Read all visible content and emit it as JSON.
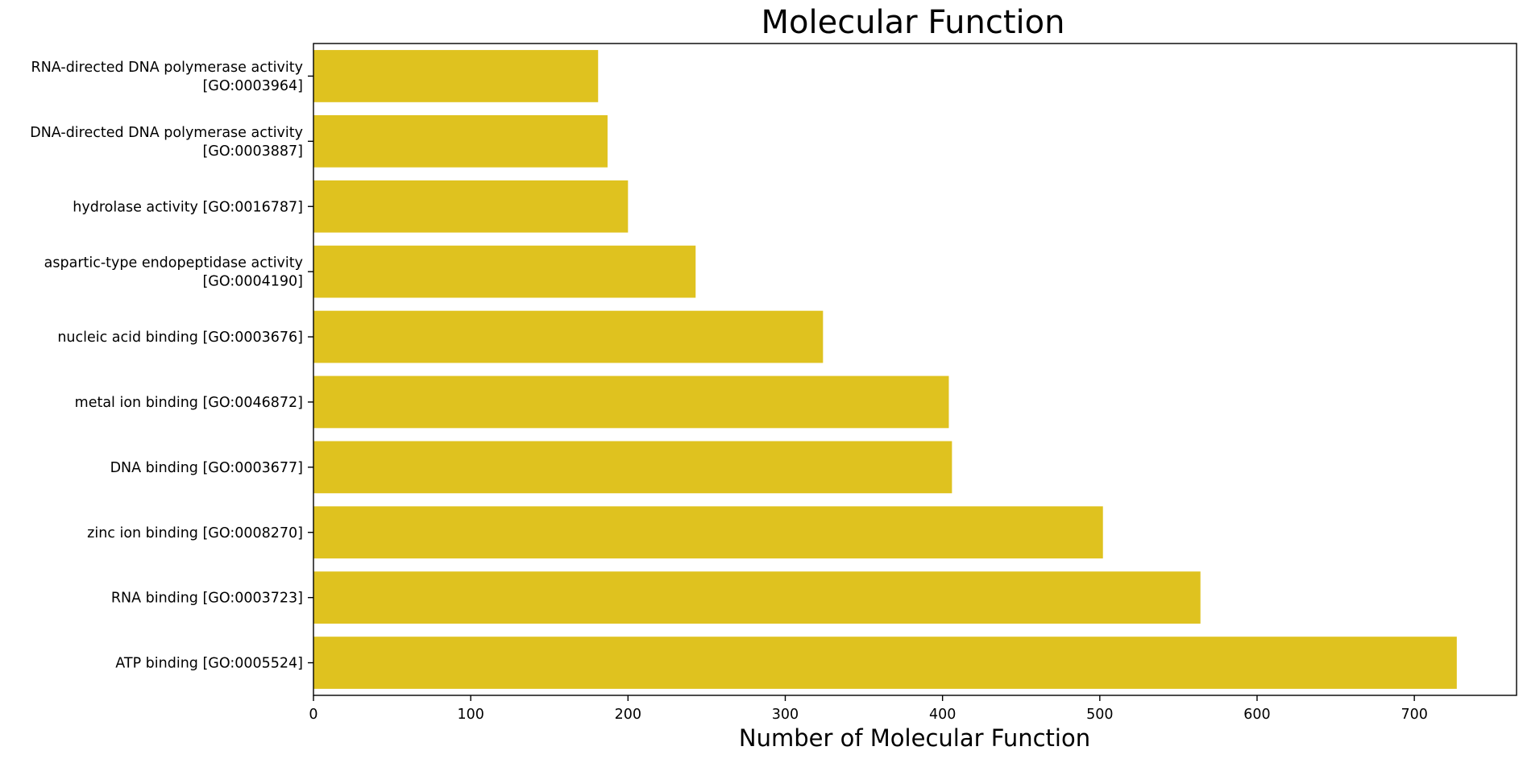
{
  "chart_data": {
    "type": "bar",
    "orientation": "horizontal",
    "title": "Molecular Function",
    "xlabel": "Number of Molecular Function",
    "ylabel": "",
    "xlim": [
      0,
      765
    ],
    "xticks": [
      "0",
      "100",
      "200",
      "300",
      "400",
      "500",
      "600",
      "700"
    ],
    "bar_color": "#dfc21f",
    "grid": false,
    "legend": "none",
    "categories": [
      [
        "RNA-directed DNA polymerase activity",
        "[GO:0003964]"
      ],
      [
        "DNA-directed DNA polymerase activity",
        "[GO:0003887]"
      ],
      [
        "hydrolase activity [GO:0016787]"
      ],
      [
        "aspartic-type endopeptidase activity",
        "[GO:0004190]"
      ],
      [
        "nucleic acid binding [GO:0003676]"
      ],
      [
        "metal ion binding [GO:0046872]"
      ],
      [
        "DNA binding [GO:0003677]"
      ],
      [
        "zinc ion binding [GO:0008270]"
      ],
      [
        "RNA binding [GO:0003723]"
      ],
      [
        "ATP binding [GO:0005524]"
      ]
    ],
    "values": [
      181,
      187,
      200,
      243,
      324,
      404,
      406,
      502,
      564,
      727
    ]
  }
}
